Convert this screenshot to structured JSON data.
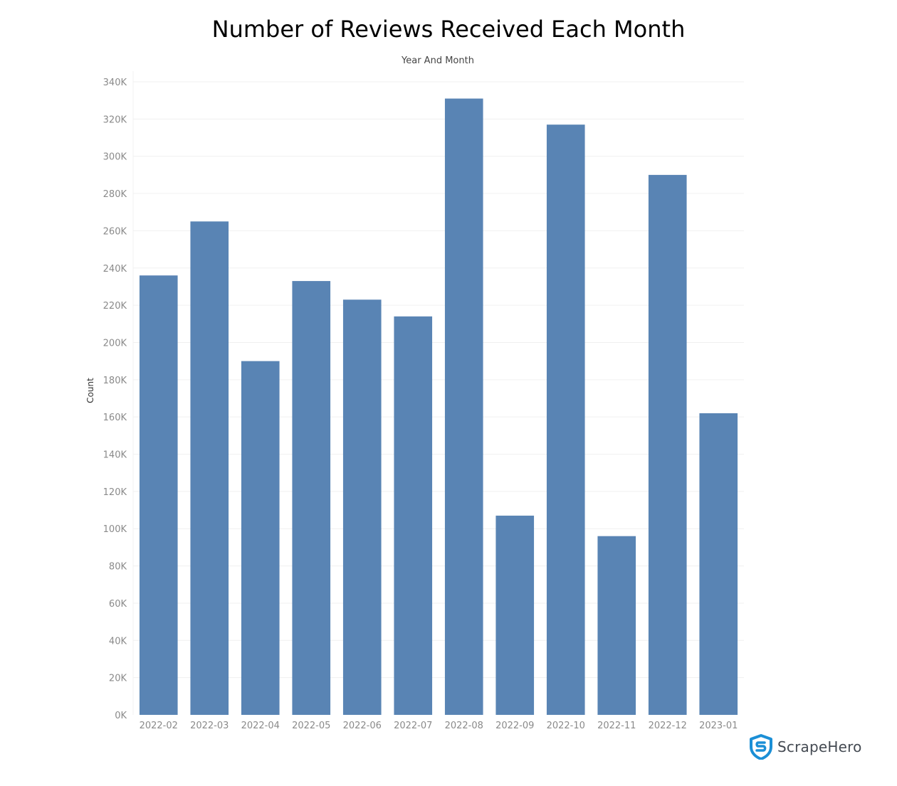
{
  "chart_data": {
    "type": "bar",
    "title": "Number of Reviews Received Each Month",
    "subtitle": "Year And Month",
    "ylabel": "Count",
    "xlabel": "",
    "categories": [
      "2022-02",
      "2022-03",
      "2022-04",
      "2022-05",
      "2022-06",
      "2022-07",
      "2022-08",
      "2022-09",
      "2022-10",
      "2022-11",
      "2022-12",
      "2023-01"
    ],
    "values": [
      236000,
      265000,
      190000,
      233000,
      223000,
      214000,
      331000,
      107000,
      317000,
      96000,
      290000,
      162000
    ],
    "ylim": [
      0,
      340000
    ],
    "yticks": [
      0,
      20000,
      40000,
      60000,
      80000,
      100000,
      120000,
      140000,
      160000,
      180000,
      200000,
      220000,
      240000,
      260000,
      280000,
      300000,
      320000,
      340000
    ],
    "ytick_labels": [
      "0K",
      "20K",
      "40K",
      "60K",
      "80K",
      "100K",
      "120K",
      "140K",
      "160K",
      "180K",
      "200K",
      "220K",
      "240K",
      "260K",
      "280K",
      "300K",
      "320K",
      "340K"
    ],
    "grid": "horizontal",
    "bar_color": "#5984b4",
    "grid_color": "#f0f0f0",
    "tick_label_color": "#8a8a8a"
  },
  "logo": {
    "text": "ScrapeHero",
    "icon": "shield-s-icon",
    "color": "#1b8fd6"
  }
}
